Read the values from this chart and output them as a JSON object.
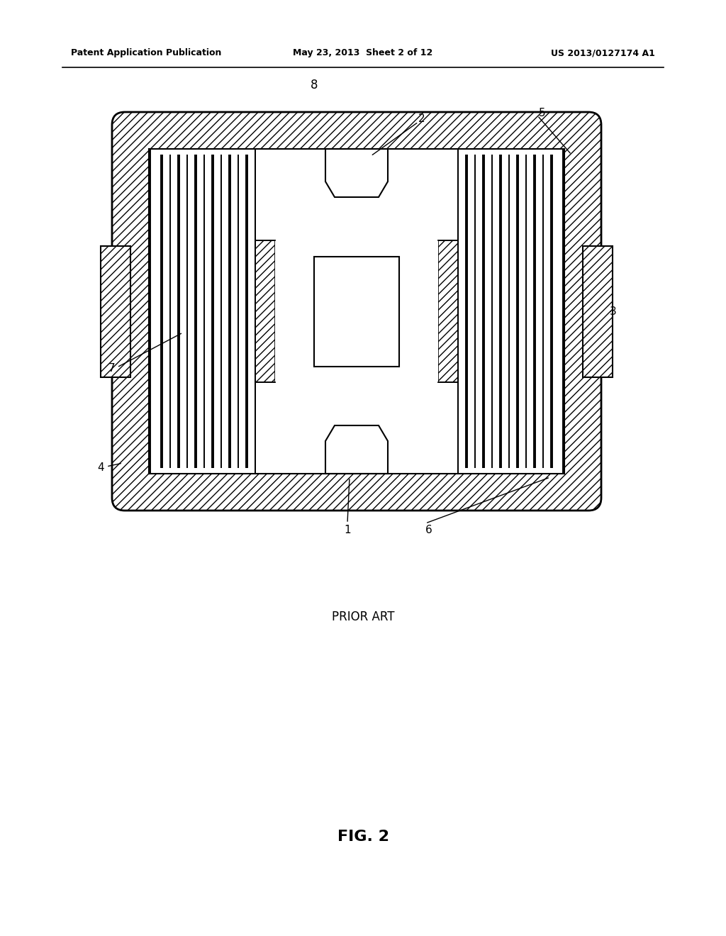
{
  "header_left": "Patent Application Publication",
  "header_center": "May 23, 2013  Sheet 2 of 12",
  "header_right": "US 2013/0127174 A1",
  "prior_art_label": "PRIOR ART",
  "fig_label": "FIG. 2",
  "bg_color": "#ffffff"
}
